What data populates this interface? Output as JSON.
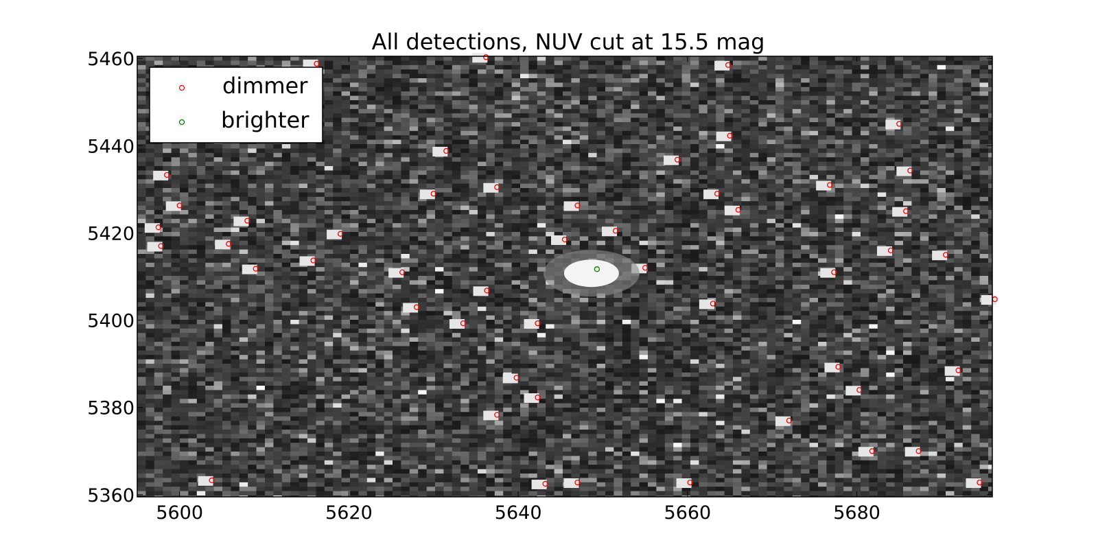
{
  "colors": {
    "dimmer": "#ff0000",
    "brighter": "#008000",
    "background": "#ffffff",
    "frame": "#000000"
  },
  "chart_data": {
    "type": "scatter",
    "title": "All detections, NUV cut at 15.5 mag",
    "xlabel": "",
    "ylabel": "",
    "xlim": [
      5595,
      5696
    ],
    "ylim": [
      5359.5,
      5460.5
    ],
    "x_ticks": [
      5600,
      5620,
      5640,
      5660,
      5680
    ],
    "y_ticks": [
      5360,
      5380,
      5400,
      5420,
      5440,
      5460
    ],
    "background": "grayscale image (noise with bright point sources)",
    "grid": false,
    "legend_placement": "upper-left",
    "legend": [
      "dimmer",
      "brighter"
    ],
    "series": [
      {
        "name": "dimmer",
        "color": "#ff0000",
        "marker": "open-circle",
        "points": [
          [
            5616.2,
            5458.8
          ],
          [
            5636.2,
            5460.3
          ],
          [
            5664.8,
            5458.5
          ],
          [
            5631.5,
            5438.8
          ],
          [
            5658.8,
            5436.8
          ],
          [
            5665.0,
            5442.3
          ],
          [
            5685.0,
            5445.0
          ],
          [
            5598.5,
            5433.3
          ],
          [
            5600.0,
            5426.3
          ],
          [
            5597.5,
            5421.3
          ],
          [
            5608.0,
            5422.8
          ],
          [
            5597.8,
            5417.0
          ],
          [
            5605.8,
            5417.5
          ],
          [
            5609.0,
            5411.8
          ],
          [
            5615.8,
            5413.7
          ],
          [
            5619.0,
            5419.8
          ],
          [
            5630.0,
            5429.0
          ],
          [
            5637.5,
            5430.5
          ],
          [
            5663.5,
            5429.0
          ],
          [
            5666.0,
            5425.3
          ],
          [
            5676.8,
            5431.0
          ],
          [
            5686.3,
            5434.3
          ],
          [
            5685.8,
            5425.0
          ],
          [
            5647.0,
            5426.3
          ],
          [
            5645.5,
            5418.5
          ],
          [
            5651.5,
            5420.5
          ],
          [
            5655.0,
            5412.0
          ],
          [
            5626.3,
            5411.0
          ],
          [
            5636.3,
            5406.8
          ],
          [
            5628.0,
            5403.0
          ],
          [
            5633.5,
            5399.3
          ],
          [
            5642.3,
            5399.3
          ],
          [
            5663.0,
            5403.8
          ],
          [
            5677.3,
            5411.0
          ],
          [
            5684.0,
            5416.0
          ],
          [
            5690.5,
            5415.0
          ],
          [
            5696.3,
            5404.8
          ],
          [
            5639.8,
            5386.8
          ],
          [
            5642.3,
            5382.3
          ],
          [
            5637.5,
            5378.3
          ],
          [
            5677.8,
            5389.3
          ],
          [
            5680.3,
            5384.0
          ],
          [
            5692.0,
            5388.5
          ],
          [
            5672.0,
            5377.0
          ],
          [
            5681.8,
            5370.0
          ],
          [
            5687.3,
            5370.0
          ],
          [
            5603.8,
            5363.3
          ],
          [
            5643.2,
            5362.5
          ],
          [
            5647.0,
            5362.8
          ],
          [
            5660.3,
            5362.8
          ],
          [
            5694.5,
            5362.8
          ]
        ]
      },
      {
        "name": "brighter",
        "color": "#008000",
        "marker": "open-circle",
        "points": [
          [
            5649.3,
            5411.7
          ]
        ]
      }
    ]
  }
}
